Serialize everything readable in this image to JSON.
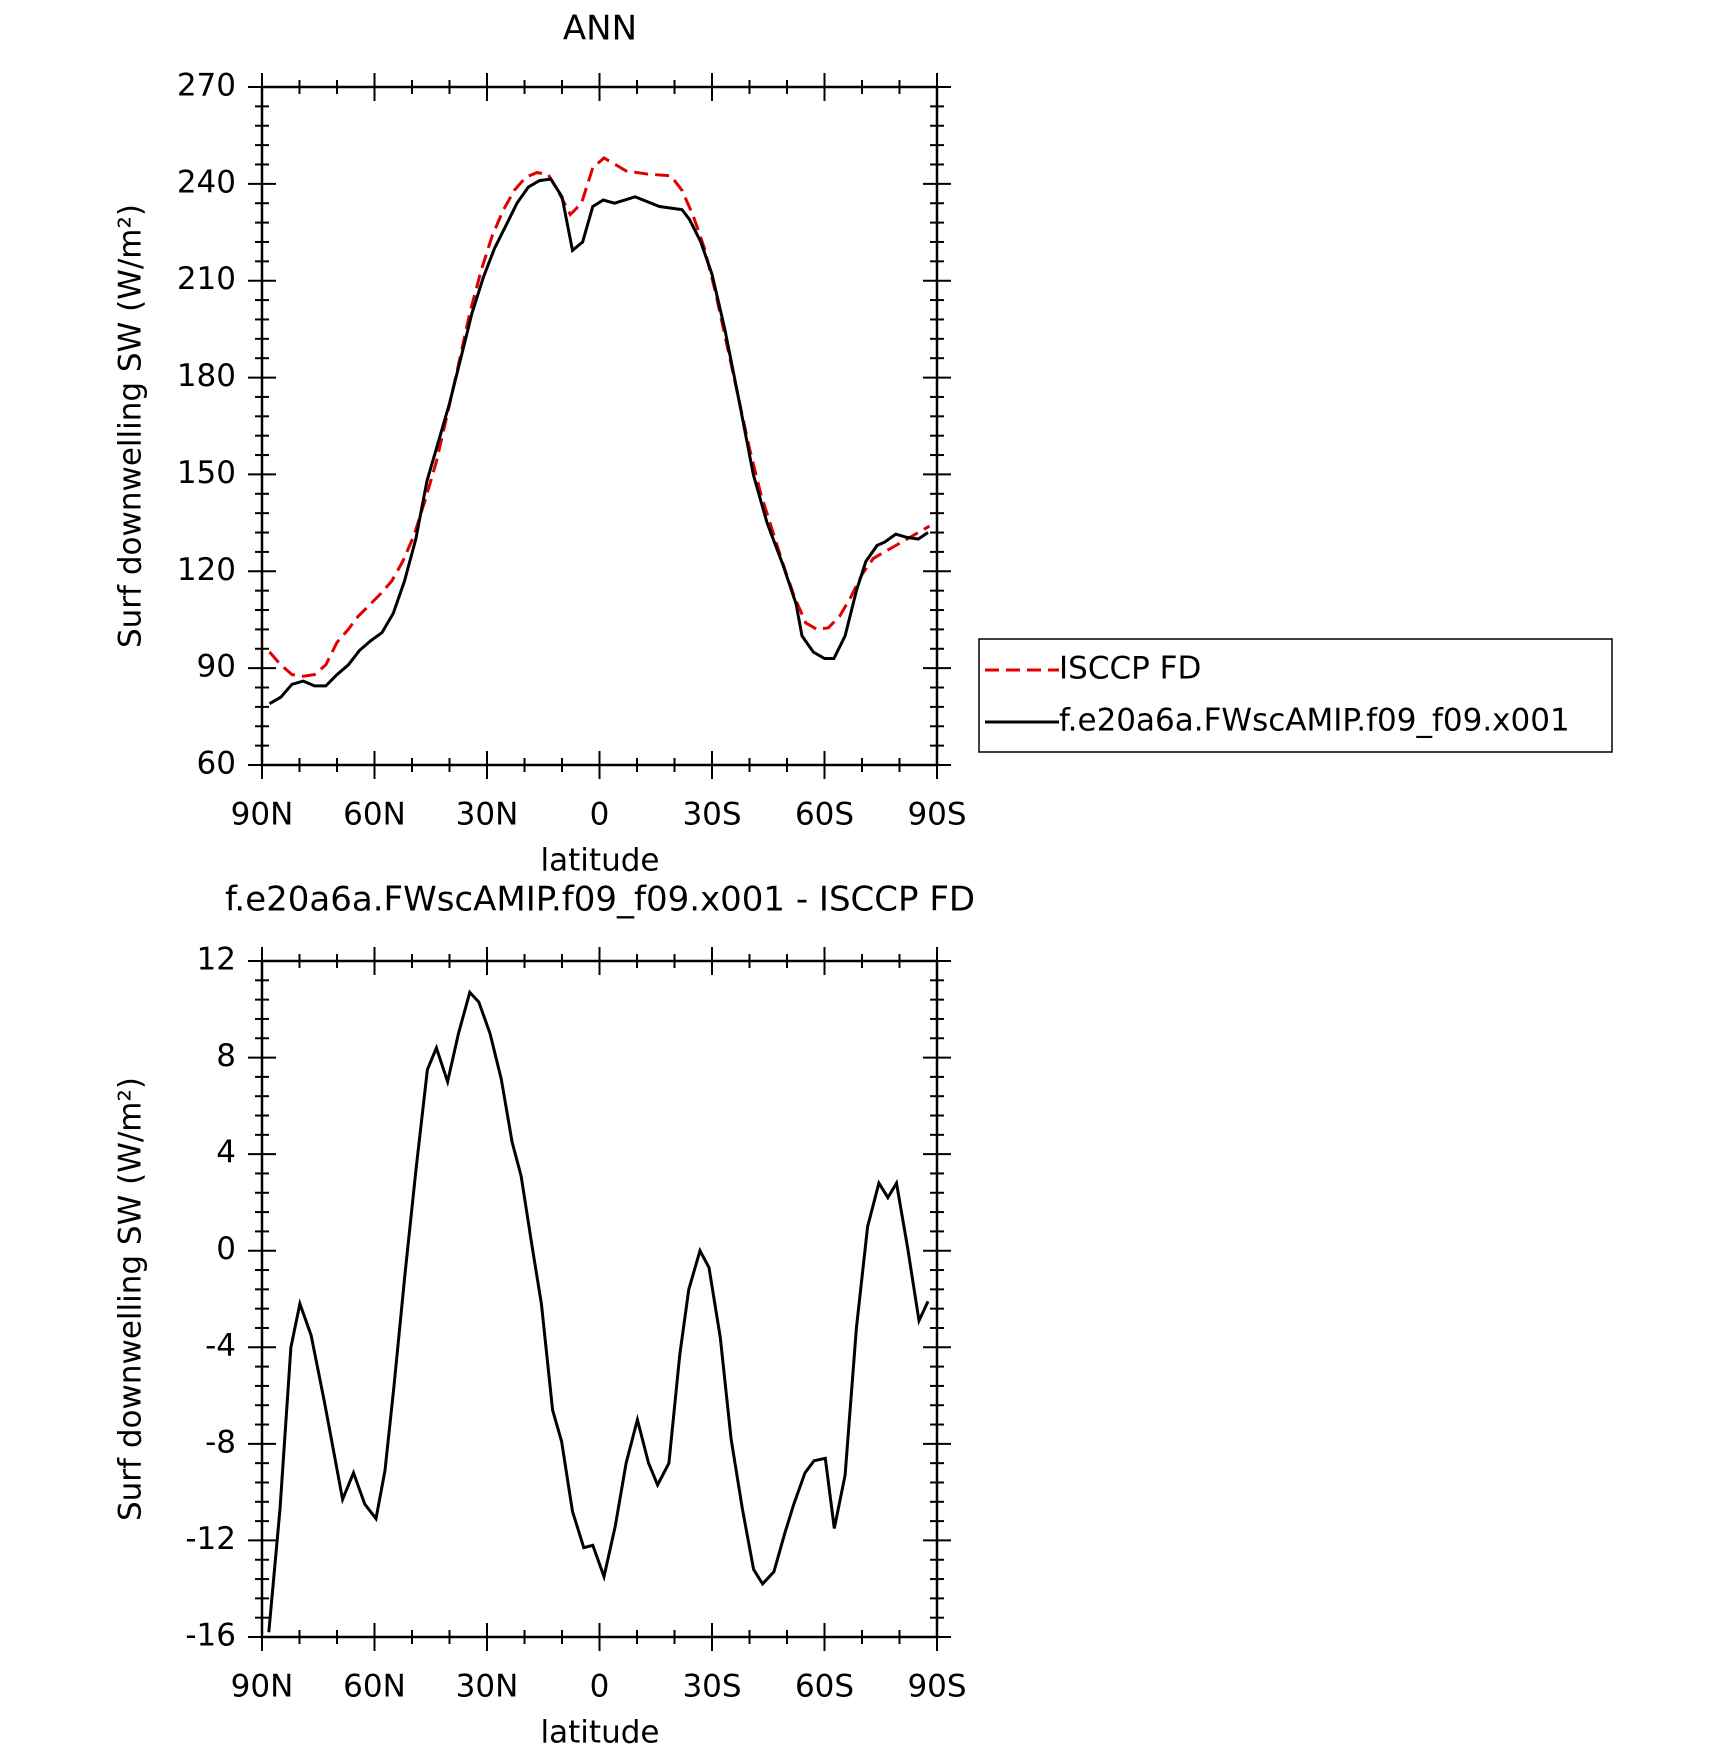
{
  "chart_data": [
    {
      "type": "line",
      "title": "ANN",
      "xlabel": "latitude",
      "ylabel": "Surf downwelling SW (W/m²)",
      "xlim": [
        90,
        -90
      ],
      "ylim": [
        60,
        270
      ],
      "xticks": [
        {
          "value": 90,
          "label": "90N"
        },
        {
          "value": 60,
          "label": "60N"
        },
        {
          "value": 30,
          "label": "30N"
        },
        0,
        {
          "value": -30,
          "label": "30S"
        },
        {
          "value": -60,
          "label": "60S"
        },
        {
          "value": -90,
          "label": "90S"
        }
      ],
      "yticks": [
        60,
        90,
        120,
        150,
        180,
        210,
        240,
        270
      ],
      "legend": "right",
      "series": [
        {
          "name": "ISCCP FD",
          "color": "#e00000",
          "style": "dashed",
          "x": [
            88,
            85,
            82,
            79,
            76,
            73,
            70,
            67,
            64.4,
            61.4,
            58.4,
            55.4,
            52.5,
            49.5,
            46.5,
            43.5,
            40.5,
            37.6,
            34.6,
            31.6,
            28.6,
            25.6,
            22.7,
            19.7,
            16.7,
            13.7,
            10.7,
            7.8,
            4.8,
            1.8,
            -1.2,
            -4.2,
            -7.1,
            -13,
            -19,
            -22,
            -25,
            -28,
            -31,
            -34,
            -37,
            -40,
            -43,
            -46,
            -49,
            -52,
            -55,
            -58,
            -61,
            -64,
            -67,
            -70,
            -73,
            -76,
            -79,
            -82,
            -85,
            -88
          ],
          "values": [
            95,
            91,
            88,
            87.5,
            88,
            91,
            98,
            102,
            106,
            109.5,
            113,
            117,
            123,
            131,
            142,
            154,
            169,
            184,
            200,
            213,
            224,
            232,
            238,
            242,
            243.5,
            243,
            237,
            230.5,
            234,
            245,
            248,
            246,
            244,
            243,
            242.5,
            238,
            230,
            220,
            206,
            190,
            174,
            158,
            144,
            133,
            122,
            112,
            104,
            102,
            102.5,
            106,
            112,
            119,
            124,
            126,
            128,
            130,
            132,
            134
          ]
        },
        {
          "name": "f.e20a6a.FWscAMIP.f09_f09.x001",
          "color": "#000000",
          "style": "solid",
          "x": [
            88,
            85,
            82,
            79,
            76,
            73,
            70,
            67,
            64,
            61,
            58,
            55,
            52,
            49,
            46,
            43,
            40,
            37,
            34,
            31,
            28,
            25,
            22,
            19,
            16,
            13,
            10,
            7.2,
            4.5,
            1.8,
            -1,
            -4,
            -9.5,
            -16,
            -22,
            -24,
            -27,
            -30,
            -33.4,
            -37,
            -41,
            -44.7,
            -48.9,
            -52.4,
            -54,
            -57,
            -60,
            -62.5,
            -65.5,
            -68.5,
            -71,
            -74,
            -76,
            -79,
            -82,
            -85,
            -87.6
          ],
          "values": [
            79,
            81,
            85,
            86,
            84.5,
            84.5,
            88,
            91,
            95.5,
            98.5,
            101,
            107,
            117,
            130,
            148,
            160,
            172,
            186,
            200,
            211,
            220,
            227,
            234,
            239,
            241,
            241.5,
            236,
            219.4,
            222,
            233,
            235,
            234,
            236,
            233,
            232,
            229,
            222,
            212,
            195,
            174,
            150,
            135,
            122,
            110,
            100,
            95,
            93,
            93,
            100,
            114,
            123,
            128,
            129,
            131.5,
            130.5,
            130,
            132
          ]
        }
      ]
    },
    {
      "type": "line",
      "title": "f.e20a6a.FWscAMIP.f09_f09.x001 - ISCCP FD",
      "xlabel": "latitude",
      "ylabel": "Surf downwelling SW (W/m²)",
      "xlim": [
        90,
        -90
      ],
      "ylim": [
        -16,
        12
      ],
      "xticks": [
        {
          "value": 90,
          "label": "90N"
        },
        {
          "value": 60,
          "label": "60N"
        },
        {
          "value": 30,
          "label": "30N"
        },
        0,
        {
          "value": -30,
          "label": "30S"
        },
        {
          "value": -60,
          "label": "60S"
        },
        {
          "value": -90,
          "label": "90S"
        }
      ],
      "yticks": [
        -16,
        -12,
        -8,
        -4,
        0,
        4,
        8,
        12
      ],
      "series": [
        {
          "color": "#000000",
          "style": "solid",
          "x": [
            88.2,
            85.2,
            82.3,
            79.9,
            76.9,
            73.3,
            68.5,
            65.6,
            62.6,
            59.6,
            57.2,
            54.8,
            51.9,
            48.9,
            45.9,
            43.5,
            40.5,
            37.6,
            34.6,
            32.2,
            29.2,
            26.2,
            23.3,
            20.9,
            17.9,
            15.5,
            12.5,
            10.1,
            7.2,
            4.2,
            1.8,
            -1.2,
            -4.2,
            -7.1,
            -10.1,
            -13.1,
            -15.5,
            -18.5,
            -21.4,
            -23.8,
            -26.8,
            -29.2,
            -32.2,
            -35.1,
            -38.1,
            -41.1,
            -43.5,
            -46.5,
            -49.4,
            -51.8,
            -54.8,
            -57.2,
            -60.2,
            -62.6,
            -65.5,
            -68.5,
            -71.5,
            -74.5,
            -76.9,
            -79.2,
            -82.2,
            -85.2,
            -87.6
          ],
          "values": [
            -15.8,
            -10.7,
            -4,
            -2.2,
            -3.5,
            -6.3,
            -10.3,
            -9.2,
            -10.5,
            -11.1,
            -9.1,
            -5.6,
            -1,
            3.4,
            7.5,
            8.4,
            7,
            9,
            10.7,
            10.3,
            9,
            7.1,
            4.5,
            3.1,
            0.1,
            -2.2,
            -6.6,
            -7.9,
            -10.8,
            -12.3,
            -12.2,
            -13.5,
            -11.4,
            -8.8,
            -7,
            -8.8,
            -9.7,
            -8.8,
            -4.3,
            -1.6,
            0,
            -0.7,
            -3.6,
            -7.8,
            -10.7,
            -13.2,
            -13.8,
            -13.3,
            -11.7,
            -10.5,
            -9.2,
            -8.7,
            -8.6,
            -11.5,
            -9.3,
            -3.2,
            1,
            2.8,
            2.2,
            2.8,
            0.1,
            -2.9,
            -2.1
          ]
        }
      ]
    }
  ]
}
